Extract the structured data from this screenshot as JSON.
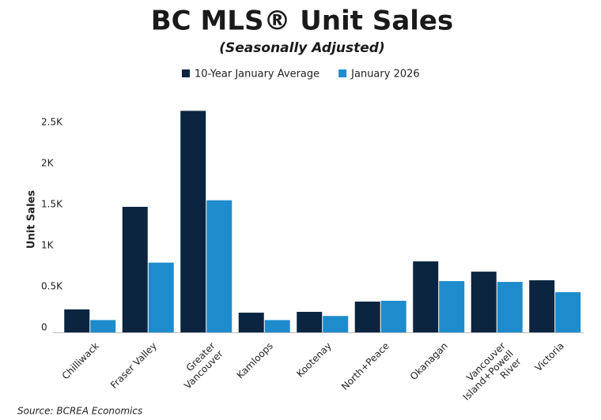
{
  "chart_data": {
    "type": "bar",
    "title": "BC MLS® Unit Sales",
    "subtitle": "(Seasonally Adjusted)",
    "y_label": "Unit Sales",
    "source": "Source: BCREA Economics",
    "categories": [
      "Chilliwack",
      "Fraser Valley",
      "Greater Vancouver",
      "Kamloops",
      "Kootenay",
      "North+Peace",
      "Okanagan",
      "Vancouver Island+Powell River",
      "Victoria"
    ],
    "series": [
      {
        "name": "10-Year January Average",
        "color": "#0b2540",
        "values": [
          280,
          1530,
          2700,
          240,
          250,
          375,
          865,
          740,
          635
        ]
      },
      {
        "name": "January 2026",
        "color": "#1e8ccc",
        "values": [
          150,
          850,
          1610,
          150,
          200,
          385,
          625,
          615,
          490
        ]
      }
    ],
    "ylim": [
      0,
      2800
    ],
    "yticks": [
      0,
      {
        "value": 500,
        "label": "0.5K"
      },
      {
        "value": 1000,
        "label": "1K"
      },
      {
        "value": 1500,
        "label": "1.5K"
      },
      {
        "value": 2000,
        "label": "2K"
      },
      {
        "value": 2500,
        "label": "2.5K"
      }
    ],
    "grid": false,
    "legend": "top"
  }
}
